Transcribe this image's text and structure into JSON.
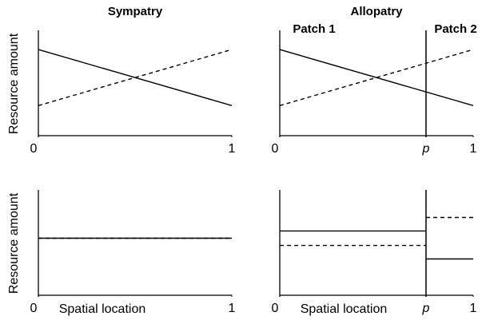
{
  "chart_data": [
    {
      "type": "line",
      "title": "Sympatry",
      "ylabel": "Resource amount",
      "xlim": [
        0,
        1
      ],
      "ylim": [
        0,
        1
      ],
      "xticks": [
        0,
        1
      ],
      "series": [
        {
          "color": "#000000",
          "dash": false,
          "x": [
            0,
            1
          ],
          "values": [
            0.83,
            0.29
          ]
        },
        {
          "color": "#000000",
          "dash": true,
          "x": [
            0,
            1
          ],
          "values": [
            0.29,
            0.83
          ]
        }
      ]
    },
    {
      "type": "line",
      "title": "Allopatry",
      "annotations": [
        "Patch 1",
        "Patch 2"
      ],
      "xlim": [
        0,
        1
      ],
      "ylim": [
        0,
        1
      ],
      "xticks": [
        0,
        {
          "value": 0.756,
          "label": "p"
        },
        1
      ],
      "divider": true,
      "series": [
        {
          "color": "#000000",
          "dash": false,
          "x": [
            0,
            1
          ],
          "values": [
            0.83,
            0.29
          ]
        },
        {
          "color": "#000000",
          "dash": true,
          "x": [
            0,
            1
          ],
          "values": [
            0.29,
            0.83
          ]
        }
      ]
    },
    {
      "type": "line",
      "ylabel": "Resource amount",
      "xlabel": "Spatial location",
      "xlim": [
        0,
        1
      ],
      "ylim": [
        0,
        1
      ],
      "xticks": [
        0,
        1
      ],
      "series": [
        {
          "color": "#000000",
          "dash": false,
          "x": [
            0,
            1
          ],
          "values": [
            0.55,
            0.55
          ]
        },
        {
          "color": "#000000",
          "dash": true,
          "x": [
            0,
            1
          ],
          "values": [
            0.55,
            0.55
          ]
        }
      ]
    },
    {
      "type": "line",
      "xlabel": "Spatial location",
      "xlim": [
        0,
        1
      ],
      "ylim": [
        0,
        1
      ],
      "xticks": [
        0,
        {
          "value": 0.756,
          "label": "p"
        },
        1
      ],
      "divider": true,
      "series": [
        {
          "color": "#000000",
          "dash": false,
          "x": [
            0,
            0.756,
            null,
            0.756,
            1
          ],
          "values": [
            0.62,
            0.62,
            null,
            0.35,
            0.35
          ]
        },
        {
          "color": "#000000",
          "dash": true,
          "x": [
            0,
            0.756,
            null,
            0.756,
            1
          ],
          "values": [
            0.48,
            0.48,
            null,
            0.75,
            0.75
          ]
        }
      ]
    }
  ]
}
